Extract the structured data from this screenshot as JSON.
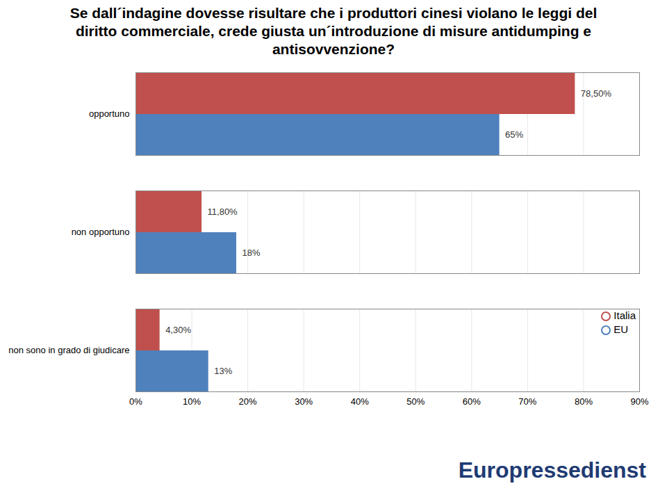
{
  "chart_data": {
    "type": "bar",
    "orientation": "horizontal",
    "title": "Se dall´indagine dovesse risultare che i produttori cinesi violano le leggi del diritto commerciale, crede giusta un´introduzione di misure antidumping e antisovvenzione?",
    "categories": [
      "opportuno",
      "non opportuno",
      "non sono in grado di giudicare"
    ],
    "series": [
      {
        "name": "Italia",
        "color": "#c0504d",
        "values": [
          78.5,
          11.8,
          4.3
        ],
        "value_labels": [
          "78,50%",
          "11,80%",
          "4,30%"
        ]
      },
      {
        "name": "EU",
        "color": "#4f81bd",
        "values": [
          65,
          18,
          13
        ],
        "value_labels": [
          "65%",
          "18%",
          "13%"
        ]
      }
    ],
    "xlim": [
      0,
      90
    ],
    "xticks": [
      {
        "value": 0,
        "label": "0%"
      },
      {
        "value": 10,
        "label": "10%"
      },
      {
        "value": 20,
        "label": "20%"
      },
      {
        "value": 30,
        "label": "30%"
      },
      {
        "value": 40,
        "label": "40%"
      },
      {
        "value": 50,
        "label": "50%"
      },
      {
        "value": 60,
        "label": "60%"
      },
      {
        "value": 70,
        "label": "70%"
      },
      {
        "value": 80,
        "label": "80%"
      },
      {
        "value": 90,
        "label": "90%"
      }
    ],
    "grid": true,
    "legend": "lower right",
    "data_labels": true,
    "caption": "Europressedienst"
  }
}
